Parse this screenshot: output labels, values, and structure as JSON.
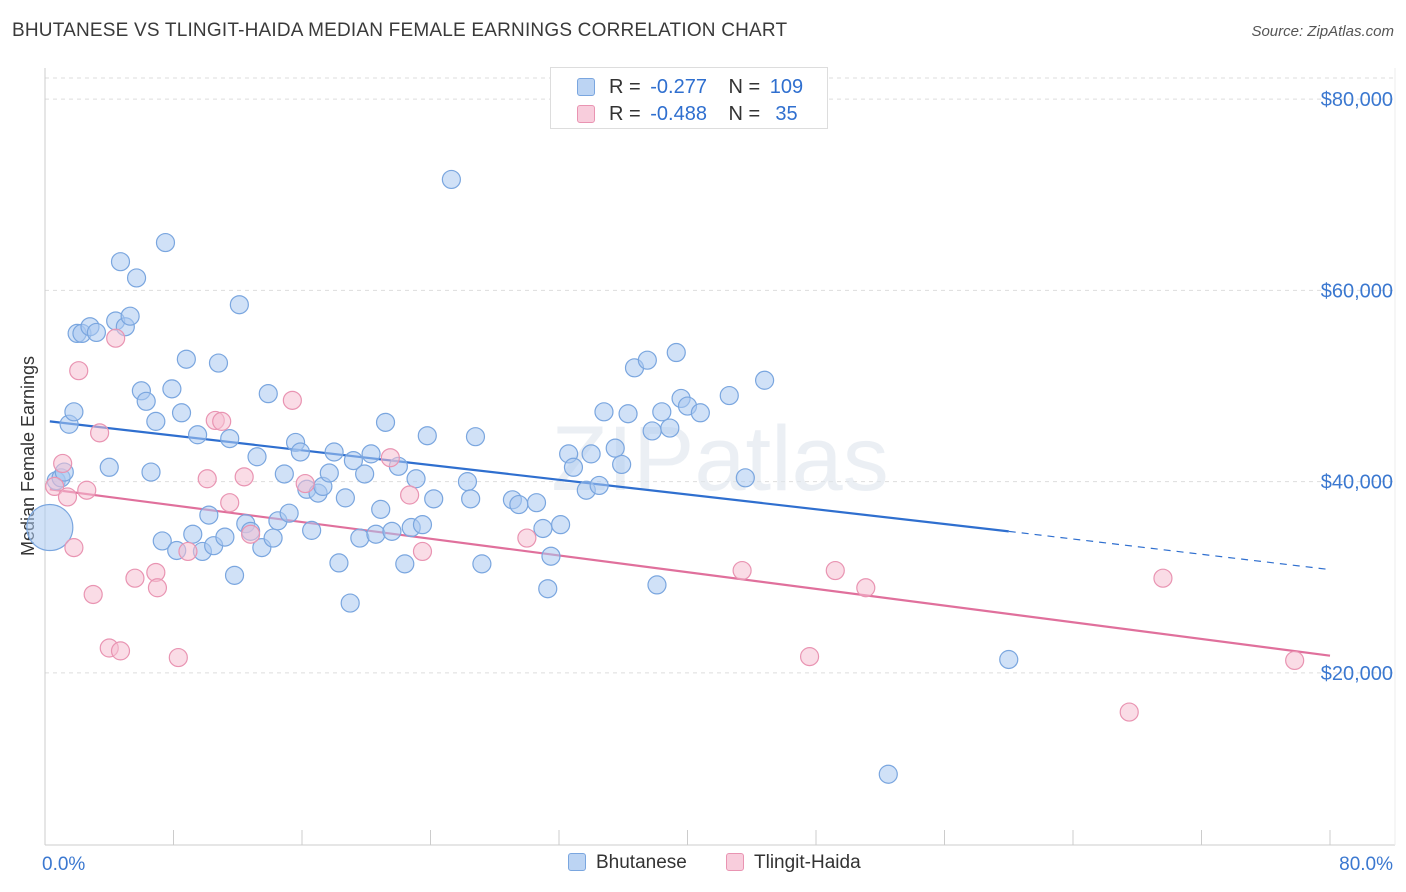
{
  "title": "BHUTANESE VS TLINGIT-HAIDA MEDIAN FEMALE EARNINGS CORRELATION CHART",
  "source": "Source: ZipAtlas.com",
  "watermark": "ZIPatlas",
  "colors": {
    "blue_fill": "#a9c8f0",
    "blue_stroke": "#7aa6df",
    "blue_line": "#2f6fcf",
    "pink_fill": "#f6bfd2",
    "pink_stroke": "#e994b2",
    "pink_line": "#e0709c",
    "axis_text": "#3b78d0",
    "grid": "#dddddd"
  },
  "legend": {
    "rows": [
      {
        "series": "Bhutanese",
        "r_label": "R =",
        "r_value": "-0.277",
        "n_label": "N =",
        "n_value": "109"
      },
      {
        "series": "Tlingit-Haida",
        "r_label": "R =",
        "r_value": "-0.488",
        "n_label": "N =",
        "n_value": " 35"
      }
    ]
  },
  "chart_data": {
    "type": "scatter",
    "title": "BHUTANESE VS TLINGIT-HAIDA MEDIAN FEMALE EARNINGS CORRELATION CHART",
    "xlabel": "",
    "ylabel": "Median Female Earnings",
    "xlim": [
      0,
      80
    ],
    "ylim": [
      2000,
      82000
    ],
    "x_tick_labels": [
      "0.0%",
      "80.0%"
    ],
    "y_ticks": [
      20000,
      40000,
      60000,
      80000
    ],
    "y_tick_labels": [
      "$20,000",
      "$40,000",
      "$60,000",
      "$80,000"
    ],
    "grid": true,
    "legend_position": "bottom-center",
    "series": [
      {
        "name": "Bhutanese",
        "color": "#a9c8f0",
        "trend": {
          "x0": 0.3,
          "y0": 46300,
          "x1": 60.0,
          "y1": 34800,
          "dash_to_x": 80.0,
          "dash_to_y": 30800
        },
        "points": [
          {
            "x": 0.3,
            "y": 35200,
            "big": true
          },
          {
            "x": 0.7,
            "y": 40100
          },
          {
            "x": 1.0,
            "y": 40400
          },
          {
            "x": 1.2,
            "y": 41000
          },
          {
            "x": 1.5,
            "y": 46000
          },
          {
            "x": 1.8,
            "y": 47300
          },
          {
            "x": 2.0,
            "y": 55500
          },
          {
            "x": 2.3,
            "y": 55500
          },
          {
            "x": 2.8,
            "y": 56200
          },
          {
            "x": 3.2,
            "y": 55600
          },
          {
            "x": 4.0,
            "y": 41500
          },
          {
            "x": 4.4,
            "y": 56800
          },
          {
            "x": 4.7,
            "y": 63000
          },
          {
            "x": 5.0,
            "y": 56200
          },
          {
            "x": 5.3,
            "y": 57300
          },
          {
            "x": 5.7,
            "y": 61300
          },
          {
            "x": 6.0,
            "y": 49500
          },
          {
            "x": 6.3,
            "y": 48400
          },
          {
            "x": 6.6,
            "y": 41000
          },
          {
            "x": 6.9,
            "y": 46300
          },
          {
            "x": 7.3,
            "y": 33800
          },
          {
            "x": 7.5,
            "y": 65000
          },
          {
            "x": 7.9,
            "y": 49700
          },
          {
            "x": 8.2,
            "y": 32800
          },
          {
            "x": 8.5,
            "y": 47200
          },
          {
            "x": 8.8,
            "y": 52800
          },
          {
            "x": 9.2,
            "y": 34500
          },
          {
            "x": 9.5,
            "y": 44900
          },
          {
            "x": 9.8,
            "y": 32700
          },
          {
            "x": 10.2,
            "y": 36500
          },
          {
            "x": 10.5,
            "y": 33300
          },
          {
            "x": 10.8,
            "y": 52400
          },
          {
            "x": 11.2,
            "y": 34200
          },
          {
            "x": 11.5,
            "y": 44500
          },
          {
            "x": 11.8,
            "y": 30200
          },
          {
            "x": 12.1,
            "y": 58500
          },
          {
            "x": 12.5,
            "y": 35600
          },
          {
            "x": 12.8,
            "y": 34800
          },
          {
            "x": 13.2,
            "y": 42600
          },
          {
            "x": 13.5,
            "y": 33100
          },
          {
            "x": 13.9,
            "y": 49200
          },
          {
            "x": 14.2,
            "y": 34100
          },
          {
            "x": 14.5,
            "y": 35900
          },
          {
            "x": 14.9,
            "y": 40800
          },
          {
            "x": 15.2,
            "y": 36700
          },
          {
            "x": 15.6,
            "y": 44100
          },
          {
            "x": 15.9,
            "y": 43100
          },
          {
            "x": 16.3,
            "y": 39200
          },
          {
            "x": 16.6,
            "y": 34900
          },
          {
            "x": 17.0,
            "y": 38800
          },
          {
            "x": 17.3,
            "y": 39500
          },
          {
            "x": 17.7,
            "y": 40900
          },
          {
            "x": 18.0,
            "y": 43100
          },
          {
            "x": 18.3,
            "y": 31500
          },
          {
            "x": 18.7,
            "y": 38300
          },
          {
            "x": 19.0,
            "y": 27300
          },
          {
            "x": 19.2,
            "y": 42200
          },
          {
            "x": 19.6,
            "y": 34100
          },
          {
            "x": 19.9,
            "y": 40800
          },
          {
            "x": 20.3,
            "y": 42900
          },
          {
            "x": 20.6,
            "y": 34500
          },
          {
            "x": 20.9,
            "y": 37100
          },
          {
            "x": 21.2,
            "y": 46200
          },
          {
            "x": 21.6,
            "y": 34800
          },
          {
            "x": 22.0,
            "y": 41600
          },
          {
            "x": 22.4,
            "y": 31400
          },
          {
            "x": 22.8,
            "y": 35200
          },
          {
            "x": 23.1,
            "y": 40300
          },
          {
            "x": 23.5,
            "y": 35500
          },
          {
            "x": 23.8,
            "y": 44800
          },
          {
            "x": 24.2,
            "y": 38200
          },
          {
            "x": 25.3,
            "y": 71600
          },
          {
            "x": 26.3,
            "y": 40000
          },
          {
            "x": 26.5,
            "y": 38200
          },
          {
            "x": 26.8,
            "y": 44700
          },
          {
            "x": 27.2,
            "y": 31400
          },
          {
            "x": 29.1,
            "y": 38100
          },
          {
            "x": 29.5,
            "y": 37600
          },
          {
            "x": 30.6,
            "y": 37800
          },
          {
            "x": 31.0,
            "y": 35100
          },
          {
            "x": 31.3,
            "y": 28800
          },
          {
            "x": 31.5,
            "y": 32200
          },
          {
            "x": 32.1,
            "y": 35500
          },
          {
            "x": 32.6,
            "y": 42900
          },
          {
            "x": 32.9,
            "y": 41500
          },
          {
            "x": 33.7,
            "y": 39100
          },
          {
            "x": 34.0,
            "y": 42900
          },
          {
            "x": 34.5,
            "y": 39600
          },
          {
            "x": 34.8,
            "y": 47300
          },
          {
            "x": 35.5,
            "y": 43500
          },
          {
            "x": 35.9,
            "y": 41800
          },
          {
            "x": 36.3,
            "y": 47100
          },
          {
            "x": 36.7,
            "y": 51900
          },
          {
            "x": 37.5,
            "y": 52700
          },
          {
            "x": 37.8,
            "y": 45300
          },
          {
            "x": 38.1,
            "y": 29200
          },
          {
            "x": 38.4,
            "y": 47300
          },
          {
            "x": 38.9,
            "y": 45600
          },
          {
            "x": 39.3,
            "y": 53500
          },
          {
            "x": 39.6,
            "y": 48700
          },
          {
            "x": 40.0,
            "y": 47900
          },
          {
            "x": 40.8,
            "y": 47200
          },
          {
            "x": 42.6,
            "y": 49000
          },
          {
            "x": 43.6,
            "y": 40400
          },
          {
            "x": 44.8,
            "y": 50600
          },
          {
            "x": 60.0,
            "y": 21400
          },
          {
            "x": 52.5,
            "y": 9400
          }
        ]
      },
      {
        "name": "Tlingit-Haida",
        "color": "#f6bfd2",
        "trend": {
          "x0": 0.3,
          "y0": 39200,
          "x1": 80.0,
          "y1": 21800
        },
        "points": [
          {
            "x": 0.6,
            "y": 39500
          },
          {
            "x": 1.1,
            "y": 41900
          },
          {
            "x": 1.4,
            "y": 38400
          },
          {
            "x": 1.8,
            "y": 33100
          },
          {
            "x": 2.1,
            "y": 51600
          },
          {
            "x": 2.6,
            "y": 39100
          },
          {
            "x": 3.0,
            "y": 28200
          },
          {
            "x": 3.4,
            "y": 45100
          },
          {
            "x": 4.0,
            "y": 22600
          },
          {
            "x": 4.4,
            "y": 55000
          },
          {
            "x": 4.7,
            "y": 22300
          },
          {
            "x": 5.6,
            "y": 29900
          },
          {
            "x": 6.9,
            "y": 30500
          },
          {
            "x": 7.0,
            "y": 28900
          },
          {
            "x": 8.3,
            "y": 21600
          },
          {
            "x": 8.9,
            "y": 32700
          },
          {
            "x": 10.1,
            "y": 40300
          },
          {
            "x": 10.6,
            "y": 46400
          },
          {
            "x": 11.0,
            "y": 46300
          },
          {
            "x": 11.5,
            "y": 37800
          },
          {
            "x": 12.4,
            "y": 40500
          },
          {
            "x": 12.8,
            "y": 34500
          },
          {
            "x": 15.4,
            "y": 48500
          },
          {
            "x": 16.2,
            "y": 39800
          },
          {
            "x": 21.5,
            "y": 42500
          },
          {
            "x": 22.7,
            "y": 38600
          },
          {
            "x": 23.5,
            "y": 32700
          },
          {
            "x": 30.0,
            "y": 34100
          },
          {
            "x": 43.4,
            "y": 30700
          },
          {
            "x": 47.6,
            "y": 21700
          },
          {
            "x": 49.2,
            "y": 30700
          },
          {
            "x": 51.1,
            "y": 28900
          },
          {
            "x": 67.5,
            "y": 15900
          },
          {
            "x": 69.6,
            "y": 29900
          },
          {
            "x": 77.8,
            "y": 21300
          }
        ]
      }
    ]
  }
}
